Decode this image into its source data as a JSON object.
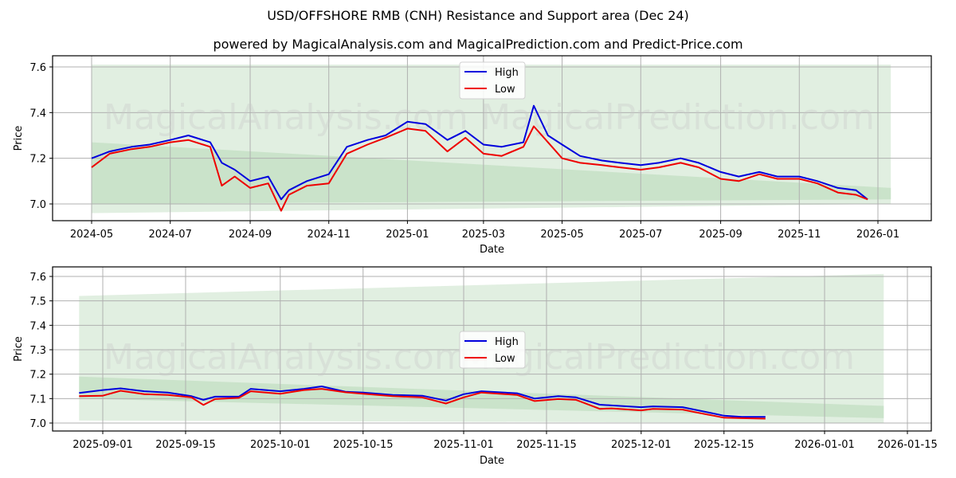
{
  "header": {
    "title": "USD/OFFSHORE RMB (CNH) Resistance and Support area (Dec 24)",
    "subtitle": "powered by MagicalAnalysis.com and MagicalPrediction.com and Predict-Price.com"
  },
  "watermarks": [
    "MagicalAnalysis.com",
    "MagicalPrediction.com"
  ],
  "colors": {
    "high": "#0000dd",
    "low": "#ee0000",
    "band_light": "#dcecdc",
    "band_dark": "#c4e0c4",
    "grid": "#b0b0b0"
  },
  "chart_data": [
    {
      "type": "line",
      "title": "USD/OFFSHORE RMB (CNH) Resistance and Support area (Dec 24)",
      "xlabel": "Date",
      "ylabel": "Price",
      "ylim": [
        6.92,
        7.65
      ],
      "yticks": [
        "7.0",
        "7.2",
        "7.4",
        "7.6"
      ],
      "xticks": [
        "2024-05",
        "2024-07",
        "2024-09",
        "2024-11",
        "2025-01",
        "2025-03",
        "2025-05",
        "2025-07",
        "2025-09",
        "2025-11",
        "2026-01"
      ],
      "grid": true,
      "legend": {
        "position": "upper center",
        "entries": [
          "High",
          "Low"
        ]
      },
      "x": [
        "2024-05-01",
        "2024-05-15",
        "2024-06-01",
        "2024-06-15",
        "2024-07-01",
        "2024-07-15",
        "2024-08-01",
        "2024-08-10",
        "2024-08-20",
        "2024-09-01",
        "2024-09-15",
        "2024-09-25",
        "2024-10-01",
        "2024-10-15",
        "2024-11-01",
        "2024-11-15",
        "2024-12-01",
        "2024-12-15",
        "2025-01-01",
        "2025-01-15",
        "2025-02-01",
        "2025-02-15",
        "2025-03-01",
        "2025-03-15",
        "2025-04-01",
        "2025-04-09",
        "2025-04-20",
        "2025-05-01",
        "2025-05-15",
        "2025-06-01",
        "2025-06-15",
        "2025-07-01",
        "2025-07-15",
        "2025-08-01",
        "2025-08-15",
        "2025-09-01",
        "2025-09-15",
        "2025-10-01",
        "2025-10-15",
        "2025-11-01",
        "2025-11-15",
        "2025-12-01",
        "2025-12-15",
        "2025-12-24"
      ],
      "series": [
        {
          "name": "High",
          "values": [
            7.2,
            7.23,
            7.25,
            7.26,
            7.28,
            7.3,
            7.27,
            7.18,
            7.15,
            7.1,
            7.12,
            7.02,
            7.06,
            7.1,
            7.13,
            7.25,
            7.28,
            7.3,
            7.36,
            7.35,
            7.28,
            7.32,
            7.26,
            7.25,
            7.27,
            7.43,
            7.3,
            7.26,
            7.21,
            7.19,
            7.18,
            7.17,
            7.18,
            7.2,
            7.18,
            7.14,
            7.12,
            7.14,
            7.12,
            7.12,
            7.1,
            7.07,
            7.06,
            7.02
          ]
        },
        {
          "name": "Low",
          "values": [
            7.16,
            7.22,
            7.24,
            7.25,
            7.27,
            7.28,
            7.25,
            7.08,
            7.12,
            7.07,
            7.09,
            6.97,
            7.04,
            7.08,
            7.09,
            7.22,
            7.26,
            7.29,
            7.33,
            7.32,
            7.23,
            7.29,
            7.22,
            7.21,
            7.25,
            7.34,
            7.27,
            7.2,
            7.18,
            7.17,
            7.16,
            7.15,
            7.16,
            7.18,
            7.16,
            7.11,
            7.1,
            7.13,
            7.11,
            7.11,
            7.09,
            7.05,
            7.04,
            7.02
          ]
        }
      ],
      "bands": [
        {
          "name": "outer-area",
          "left_date": "2024-05-01",
          "right_date": "2026-01-11",
          "left": [
            6.96,
            7.61
          ],
          "right": [
            7.0,
            7.61
          ]
        },
        {
          "name": "support-area",
          "left_date": "2024-05-01",
          "right_date": "2026-01-11",
          "left": [
            7.0,
            7.27
          ],
          "right": [
            7.02,
            7.07
          ]
        }
      ]
    },
    {
      "type": "line",
      "xlabel": "Date",
      "ylabel": "Price",
      "ylim": [
        6.96,
        7.64
      ],
      "yticks": [
        "7.0",
        "7.1",
        "7.2",
        "7.3",
        "7.4",
        "7.5",
        "7.6"
      ],
      "xticks": [
        "2025-09-01",
        "2025-09-15",
        "2025-10-01",
        "2025-10-15",
        "2025-11-01",
        "2025-11-15",
        "2025-12-01",
        "2025-12-15",
        "2026-01-01",
        "2026-01-15"
      ],
      "grid": true,
      "legend": {
        "position": "center",
        "entries": [
          "High",
          "Low"
        ]
      },
      "x": [
        "2025-08-28",
        "2025-09-01",
        "2025-09-04",
        "2025-09-08",
        "2025-09-12",
        "2025-09-16",
        "2025-09-18",
        "2025-09-20",
        "2025-09-24",
        "2025-09-26",
        "2025-10-01",
        "2025-10-05",
        "2025-10-08",
        "2025-10-12",
        "2025-10-15",
        "2025-10-20",
        "2025-10-25",
        "2025-10-29",
        "2025-11-01",
        "2025-11-04",
        "2025-11-10",
        "2025-11-13",
        "2025-11-17",
        "2025-11-20",
        "2025-11-24",
        "2025-11-26",
        "2025-12-01",
        "2025-12-03",
        "2025-12-08",
        "2025-12-10",
        "2025-12-15",
        "2025-12-18",
        "2025-12-22"
      ],
      "series": [
        {
          "name": "High",
          "values": [
            7.123,
            7.135,
            7.142,
            7.13,
            7.125,
            7.11,
            7.095,
            7.108,
            7.108,
            7.14,
            7.13,
            7.14,
            7.15,
            7.128,
            7.125,
            7.115,
            7.112,
            7.092,
            7.118,
            7.13,
            7.122,
            7.1,
            7.11,
            7.105,
            7.075,
            7.072,
            7.065,
            7.068,
            7.065,
            7.055,
            7.03,
            7.025,
            7.025
          ]
        },
        {
          "name": "Low",
          "values": [
            7.11,
            7.112,
            7.132,
            7.118,
            7.115,
            7.105,
            7.074,
            7.098,
            7.103,
            7.13,
            7.12,
            7.135,
            7.14,
            7.126,
            7.12,
            7.11,
            7.105,
            7.08,
            7.105,
            7.125,
            7.115,
            7.09,
            7.098,
            7.095,
            7.058,
            7.06,
            7.052,
            7.058,
            7.055,
            7.045,
            7.022,
            7.02,
            7.018
          ]
        }
      ],
      "bands": [
        {
          "name": "outer-area",
          "left_date": "2025-08-28",
          "right_date": "2026-01-11",
          "left": [
            7.01,
            7.52
          ],
          "right": [
            7.0,
            7.61
          ]
        },
        {
          "name": "support-area",
          "left_date": "2025-08-28",
          "right_date": "2026-01-11",
          "left": [
            7.1,
            7.19
          ],
          "right": [
            7.02,
            7.07
          ]
        }
      ]
    }
  ]
}
